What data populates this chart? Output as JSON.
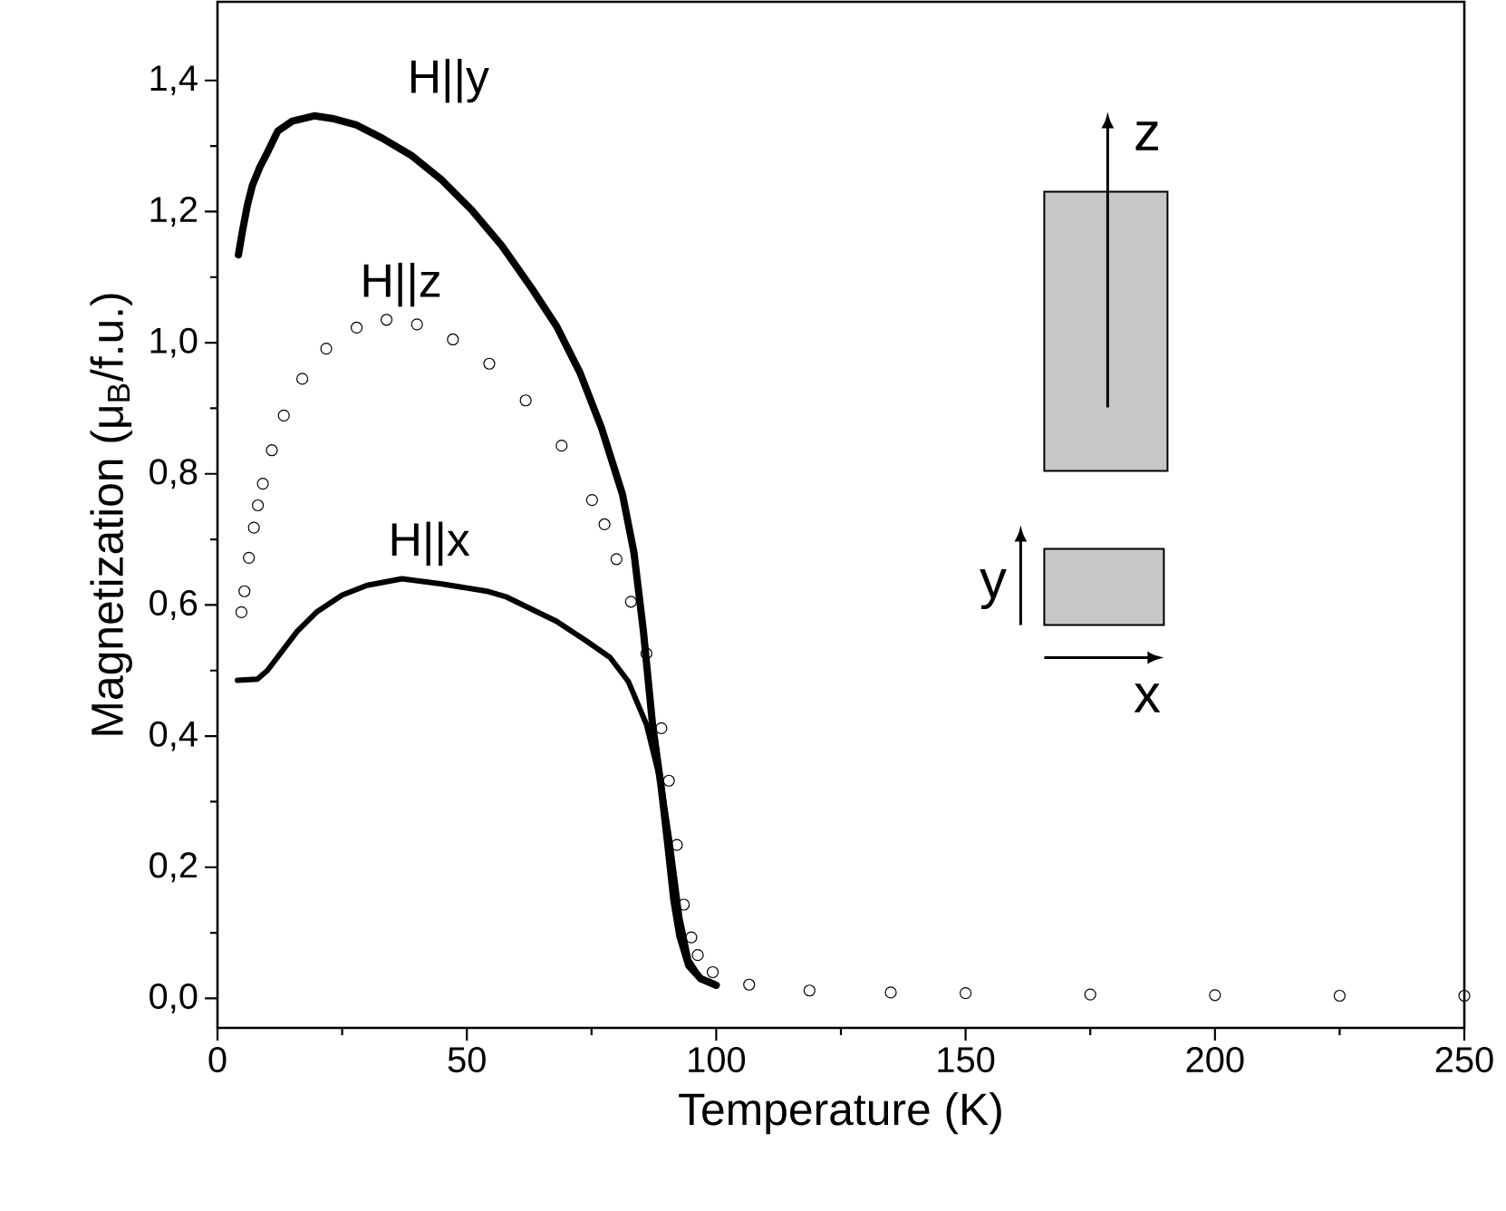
{
  "chart_data": {
    "type": "line",
    "xlabel": "Temperature (K)",
    "ylabel": "Magnetization (μ$_{B}$/f.u.)",
    "xlim": [
      0,
      250
    ],
    "xticks": [
      0,
      50,
      100,
      150,
      200,
      250
    ],
    "ylim": [
      -0.045,
      1.52
    ],
    "yticks": [
      {
        "value": 0.0,
        "label": "0,0"
      },
      {
        "value": 0.2,
        "label": "0,2"
      },
      {
        "value": 0.4,
        "label": "0,4"
      },
      {
        "value": 0.6,
        "label": "0,6"
      },
      {
        "value": 0.8,
        "label": "0,8"
      },
      {
        "value": 1.0,
        "label": "1,0"
      },
      {
        "value": 1.2,
        "label": "1,2"
      },
      {
        "value": 1.4,
        "label": "1,4"
      }
    ],
    "grid": false,
    "annotations": [
      "z",
      "y",
      "x"
    ],
    "series": [
      {
        "name": "H||y",
        "color": "#000000",
        "x": [
          4.2,
          5,
          6,
          7,
          8.5,
          10,
          12.1,
          15,
          19.4,
          23,
          27.9,
          33,
          38.8,
          45,
          50.9,
          57,
          63,
          68,
          72.7,
          77,
          81.2,
          83.5,
          85.4,
          87.2,
          89,
          90.3,
          91.5,
          92.7,
          94.5,
          96.9,
          100
        ],
        "values": [
          1.134,
          1.17,
          1.21,
          1.24,
          1.268,
          1.29,
          1.323,
          1.338,
          1.346,
          1.342,
          1.332,
          1.312,
          1.286,
          1.248,
          1.203,
          1.148,
          1.083,
          1.025,
          0.954,
          0.87,
          0.769,
          0.68,
          0.56,
          0.42,
          0.32,
          0.234,
          0.15,
          0.095,
          0.05,
          0.03,
          0.02
        ]
      },
      {
        "name": "H||z",
        "color": "#000000",
        "type": "scatter",
        "marker": "circle",
        "x": [
          4.8,
          5.4,
          6.3,
          7.3,
          8.1,
          9.1,
          10.9,
          13.3,
          17,
          21.8,
          27.9,
          33.9,
          40,
          47.2,
          54.5,
          61.8,
          69,
          75.1,
          77.6,
          80,
          82.9,
          86,
          89,
          90.5,
          92.1,
          93.5,
          95,
          96.3,
          99.3,
          106.6,
          118.7,
          135,
          150,
          175,
          200,
          225,
          250
        ],
        "values": [
          0.589,
          0.621,
          0.672,
          0.718,
          0.752,
          0.785,
          0.836,
          0.889,
          0.945,
          0.991,
          1.023,
          1.035,
          1.028,
          1.005,
          0.968,
          0.912,
          0.843,
          0.76,
          0.723,
          0.67,
          0.605,
          0.526,
          0.412,
          0.332,
          0.234,
          0.143,
          0.093,
          0.066,
          0.04,
          0.021,
          0.012,
          0.009,
          0.008,
          0.006,
          0.005,
          0.004,
          0.004
        ]
      },
      {
        "name": "H||x",
        "color": "#000000",
        "x": [
          4,
          8,
          10,
          13,
          16,
          20,
          25,
          30,
          37,
          45,
          54,
          58,
          68,
          74,
          78.7,
          82.4,
          86,
          89,
          90.8,
          92.7,
          94.5,
          96.9,
          99
        ],
        "values": [
          0.485,
          0.487,
          0.5,
          0.53,
          0.56,
          0.59,
          0.615,
          0.63,
          0.64,
          0.632,
          0.621,
          0.612,
          0.575,
          0.545,
          0.52,
          0.483,
          0.418,
          0.326,
          0.234,
          0.123,
          0.058,
          0.03,
          0.025
        ]
      }
    ]
  }
}
